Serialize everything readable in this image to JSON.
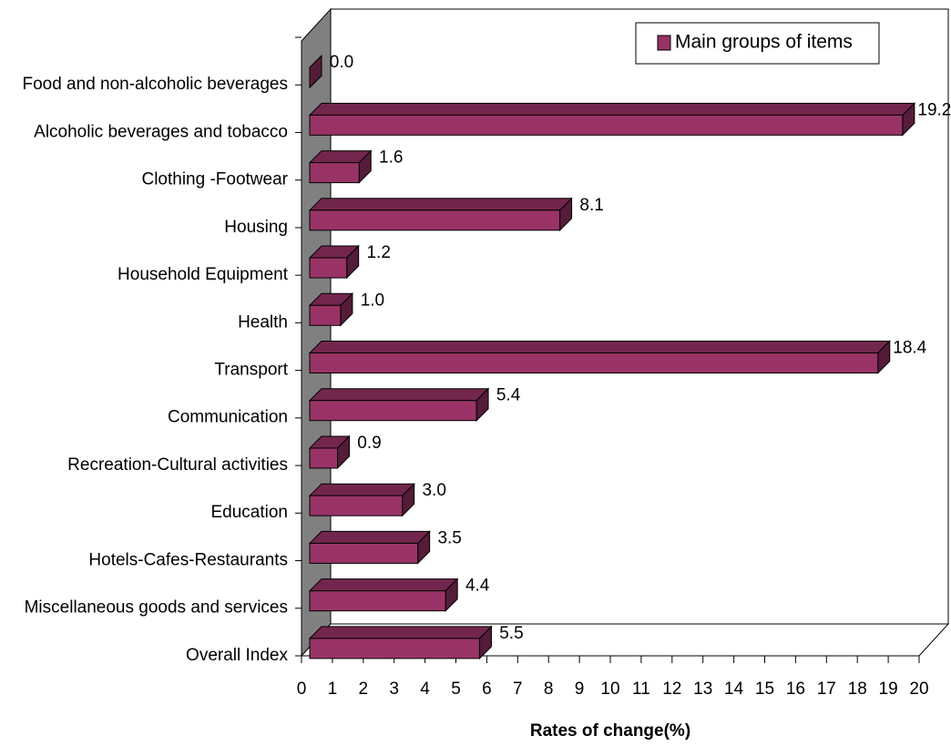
{
  "chart_data": {
    "type": "bar",
    "orientation": "horizontal",
    "x_label": "Rates of change(%)",
    "categories": [
      "Food and non-alcoholic beverages",
      "Alcoholic beverages and tobacco",
      "Clothing -Footwear",
      "Housing",
      "Household Equipment",
      "Health",
      "Transport",
      "Communication",
      "Recreation-Cultural activities",
      "Education",
      "Hotels-Cafes-Restaurants",
      "Miscellaneous goods and services",
      "Overall Index"
    ],
    "series": [
      {
        "name": "Main groups of items",
        "color": "#993366",
        "values": [
          0.0,
          19.2,
          1.6,
          8.1,
          1.2,
          1.0,
          18.4,
          5.4,
          0.9,
          3.0,
          3.5,
          4.4,
          5.5
        ],
        "value_labels": [
          "0.0",
          "19.2",
          "1.6",
          "8.1",
          "1.2",
          "1.0",
          "18.4",
          "5.4",
          "0.9",
          "3.0",
          "3.5",
          "4.4",
          "5.5"
        ]
      }
    ],
    "xlim": [
      0,
      20
    ],
    "xticks": [
      0,
      1,
      2,
      3,
      4,
      5,
      6,
      7,
      8,
      9,
      10,
      11,
      12,
      13,
      14,
      15,
      16,
      17,
      18,
      19,
      20
    ],
    "legend": "top-right"
  }
}
